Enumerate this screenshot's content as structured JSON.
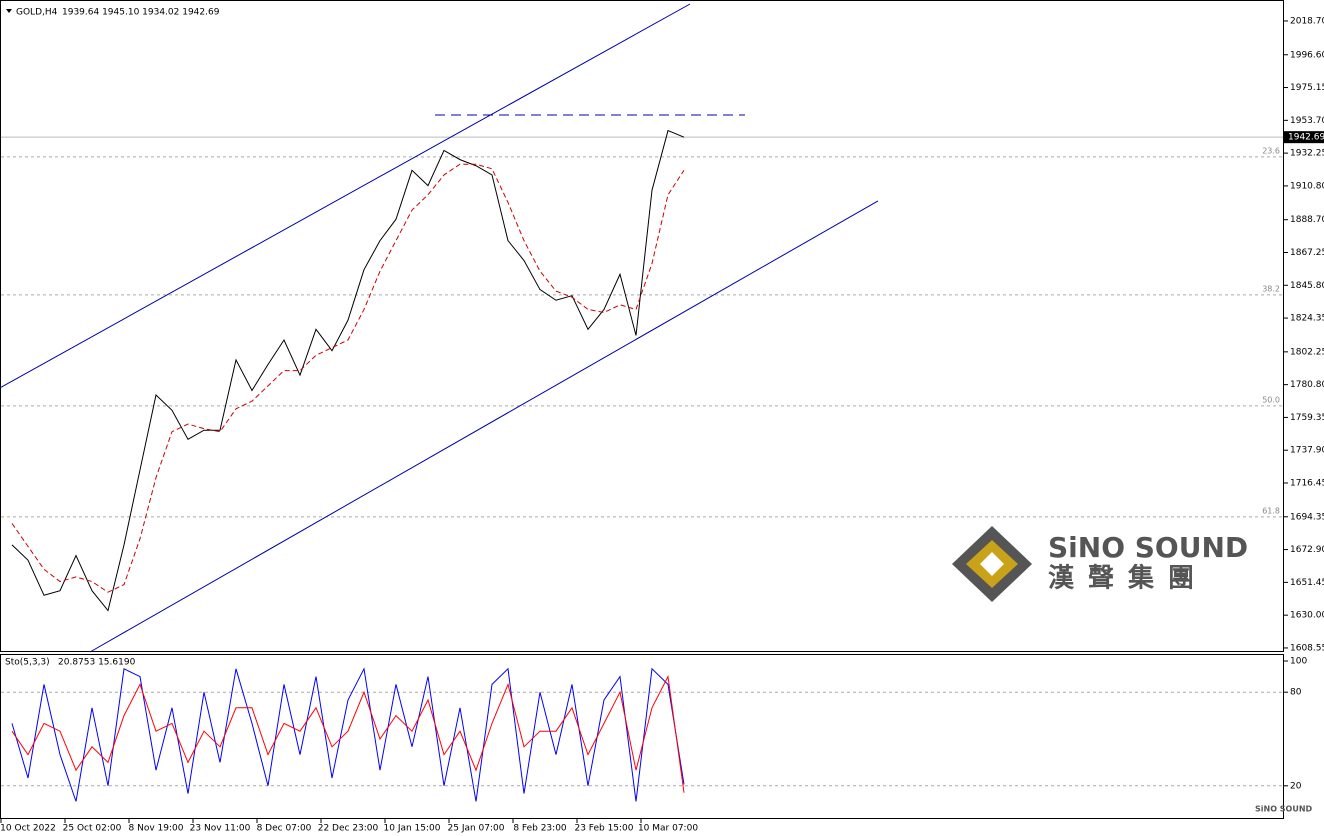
{
  "chart_data": [
    {
      "type": "line",
      "title": "GOLD,H4",
      "ohlc": "1939.64 1945.10 1934.02 1942.69",
      "categories": [
        null,
        "10 Oct 2022",
        null,
        null,
        null,
        "25 Oct 02:00",
        null,
        null,
        null,
        "8 Nov 19:00",
        null,
        null,
        null,
        "23 Nov 11:00",
        null,
        null,
        null,
        "8 Dec 07:00",
        null,
        null,
        null,
        "22 Dec 23:00",
        null,
        null,
        null,
        "10 Jan 15:00",
        null,
        null,
        null,
        "25 Jan 07:00",
        null,
        null,
        null,
        "8 Feb 23:00",
        null,
        null,
        null,
        "23 Feb 15:00",
        null,
        null,
        null,
        "10 Mar 07:00",
        null
      ],
      "series": [
        {
          "color": "#000000",
          "values": [
            1676,
            1666,
            1643,
            1646,
            1669,
            1646,
            1633,
            1676,
            1725,
            1774,
            1764,
            1745,
            1751,
            1751,
            1797,
            1777,
            1794,
            1810,
            1787,
            1817,
            1803,
            1823,
            1856,
            1875,
            1889,
            1921,
            1911,
            1934,
            1928,
            1924,
            1918,
            1875,
            1862,
            1843,
            1836,
            1839,
            1817,
            1830,
            1853,
            1813,
            1908,
            1947,
            1942.69
          ]
        },
        {
          "color": "#cc0000",
          "dashed": true,
          "values": [
            1690,
            1675,
            1660,
            1652,
            1655,
            1652,
            1645,
            1650,
            1680,
            1720,
            1750,
            1755,
            1752,
            1750,
            1765,
            1770,
            1780,
            1790,
            1790,
            1800,
            1805,
            1810,
            1830,
            1855,
            1875,
            1895,
            1905,
            1918,
            1925,
            1925,
            1922,
            1900,
            1875,
            1855,
            1842,
            1838,
            1830,
            1828,
            1833,
            1830,
            1860,
            1905,
            1921
          ]
        }
      ],
      "ylim": [
        1605.9,
        2029.8
      ],
      "yticks": [
        {
          "value": 2018.7,
          "label": "2018.70"
        },
        {
          "value": 1996.6,
          "label": "1996.60"
        },
        {
          "value": 1975.15,
          "label": "1975.15"
        },
        {
          "value": 1953.7,
          "label": "1953.70"
        },
        {
          "value": 1932.25,
          "label": "1932.25"
        },
        {
          "value": 1910.8,
          "label": "1910.80"
        },
        {
          "value": 1888.7,
          "label": "1888.70"
        },
        {
          "value": 1867.25,
          "label": "1867.25"
        },
        {
          "value": 1845.8,
          "label": "1845.80"
        },
        {
          "value": 1824.35,
          "label": "1824.35"
        },
        {
          "value": 1802.25,
          "label": "1802.25"
        },
        {
          "value": 1780.8,
          "label": "1780.80"
        },
        {
          "value": 1759.35,
          "label": "1759.35"
        },
        {
          "value": 1737.9,
          "label": "1737.90"
        },
        {
          "value": 1716.45,
          "label": "1716.45"
        },
        {
          "value": 1694.35,
          "label": "1694.35"
        },
        {
          "value": 1672.9,
          "label": "1672.90"
        },
        {
          "value": 1651.45,
          "label": "1651.45"
        },
        {
          "value": 1630,
          "label": "1630.00"
        },
        {
          "value": 1608.55,
          "label": "1608.55"
        }
      ],
      "last_price": 1942.69,
      "levels": [
        {
          "label": "23.6",
          "value": 1929.8
        },
        {
          "label": "38.2",
          "value": 1839.5
        },
        {
          "label": "50.0",
          "value": 1766.9
        },
        {
          "label": "61.8",
          "value": 1694.3
        }
      ],
      "trendlines": [
        {
          "color": "#0000aa",
          "x": [
            -0.75,
            42.375
          ],
          "y": [
            1778.7,
            2029.8
          ]
        },
        {
          "color": "#0000aa",
          "x": [
            4.875,
            54.125
          ],
          "y": [
            1605.9,
            1901.0
          ]
        },
        {
          "color": "#0000aa",
          "dashed": true,
          "x": [
            26.44,
            45.81
          ],
          "y": [
            1957.2,
            1957.2
          ]
        }
      ]
    },
    {
      "type": "line",
      "title": "Sto(5,3,3)",
      "readout": "20.8753 15.6190",
      "series": [
        {
          "color": "#0000ff",
          "values": [
            60,
            25,
            85,
            40,
            10,
            70,
            20,
            95,
            90,
            30,
            70,
            15,
            80,
            35,
            95,
            60,
            20,
            85,
            40,
            90,
            25,
            75,
            95,
            30,
            85,
            45,
            90,
            20,
            70,
            10,
            85,
            95,
            15,
            80,
            40,
            85,
            20,
            75,
            90,
            10,
            95,
            85,
            20.8753
          ]
        },
        {
          "color": "#ff0000",
          "values": [
            55,
            40,
            60,
            55,
            30,
            45,
            35,
            65,
            85,
            55,
            60,
            35,
            55,
            45,
            70,
            70,
            40,
            60,
            55,
            70,
            45,
            55,
            80,
            50,
            65,
            55,
            75,
            40,
            55,
            30,
            60,
            85,
            45,
            55,
            55,
            70,
            40,
            60,
            80,
            30,
            70,
            90,
            15.619
          ]
        }
      ],
      "ylim": [
        0,
        100
      ],
      "yticks": [
        20,
        80,
        100
      ],
      "grid": [
        20,
        80
      ]
    }
  ],
  "watermark": {
    "brand": "SiNO SOUND",
    "chinese": "漢聲集團"
  }
}
